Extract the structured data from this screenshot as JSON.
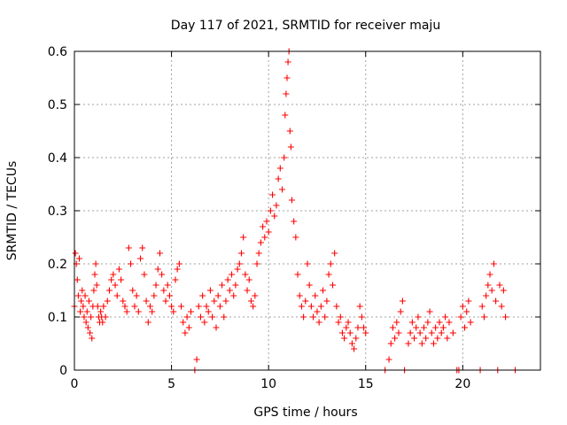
{
  "colors": {
    "series": "#ff0000",
    "axis": "#000000",
    "grid": "#a0a0a0",
    "background": "#ffffff"
  },
  "chart_data": {
    "type": "scatter",
    "title": "Day 117 of 2021, SRMTID for receiver maju",
    "xlabel": "GPS time / hours",
    "ylabel": "SRMTID / TECUs",
    "xlim": [
      0,
      24
    ],
    "ylim": [
      0,
      0.6
    ],
    "xticks": [
      0,
      5,
      10,
      15,
      20
    ],
    "xtick_labels": [
      "0",
      "5",
      "10",
      "15",
      "20"
    ],
    "yticks": [
      0,
      0.1,
      0.2,
      0.3,
      0.4,
      0.5,
      0.6
    ],
    "ytick_labels": [
      "0",
      "0.1",
      "0.2",
      "0.3",
      "0.4",
      "0.5",
      "0.6"
    ],
    "grid": true,
    "marker": "+",
    "series": [
      {
        "name": "SRMTID",
        "points": [
          [
            0.0,
            0.12
          ],
          [
            0.05,
            0.22
          ],
          [
            0.1,
            0.2
          ],
          [
            0.15,
            0.17
          ],
          [
            0.2,
            0.14
          ],
          [
            0.25,
            0.21
          ],
          [
            0.3,
            0.11
          ],
          [
            0.35,
            0.13
          ],
          [
            0.4,
            0.15
          ],
          [
            0.45,
            0.12
          ],
          [
            0.5,
            0.1
          ],
          [
            0.55,
            0.14
          ],
          [
            0.6,
            0.09
          ],
          [
            0.65,
            0.11
          ],
          [
            0.7,
            0.08
          ],
          [
            0.75,
            0.13
          ],
          [
            0.8,
            0.07
          ],
          [
            0.85,
            0.1
          ],
          [
            0.9,
            0.06
          ],
          [
            0.95,
            0.12
          ],
          [
            1.0,
            0.15
          ],
          [
            1.05,
            0.18
          ],
          [
            1.1,
            0.2
          ],
          [
            1.15,
            0.16
          ],
          [
            1.2,
            0.12
          ],
          [
            1.25,
            0.1
          ],
          [
            1.3,
            0.09
          ],
          [
            1.35,
            0.11
          ],
          [
            1.4,
            0.1
          ],
          [
            1.45,
            0.09
          ],
          [
            1.5,
            0.12
          ],
          [
            1.6,
            0.1
          ],
          [
            1.7,
            0.13
          ],
          [
            1.8,
            0.15
          ],
          [
            1.9,
            0.17
          ],
          [
            2.0,
            0.18
          ],
          [
            2.1,
            0.16
          ],
          [
            2.2,
            0.14
          ],
          [
            2.3,
            0.19
          ],
          [
            2.4,
            0.17
          ],
          [
            2.5,
            0.13
          ],
          [
            2.6,
            0.12
          ],
          [
            2.7,
            0.11
          ],
          [
            2.8,
            0.23
          ],
          [
            2.9,
            0.2
          ],
          [
            3.0,
            0.15
          ],
          [
            3.1,
            0.12
          ],
          [
            3.2,
            0.14
          ],
          [
            3.3,
            0.11
          ],
          [
            3.4,
            0.21
          ],
          [
            3.5,
            0.23
          ],
          [
            3.6,
            0.18
          ],
          [
            3.7,
            0.13
          ],
          [
            3.8,
            0.09
          ],
          [
            3.9,
            0.12
          ],
          [
            4.0,
            0.11
          ],
          [
            4.1,
            0.14
          ],
          [
            4.2,
            0.16
          ],
          [
            4.3,
            0.19
          ],
          [
            4.4,
            0.22
          ],
          [
            4.5,
            0.18
          ],
          [
            4.6,
            0.15
          ],
          [
            4.7,
            0.13
          ],
          [
            4.8,
            0.16
          ],
          [
            4.9,
            0.14
          ],
          [
            5.0,
            0.12
          ],
          [
            5.1,
            0.11
          ],
          [
            5.2,
            0.17
          ],
          [
            5.3,
            0.19
          ],
          [
            5.4,
            0.2
          ],
          [
            5.5,
            0.12
          ],
          [
            5.6,
            0.09
          ],
          [
            5.7,
            0.07
          ],
          [
            5.8,
            0.1
          ],
          [
            5.9,
            0.08
          ],
          [
            6.0,
            0.11
          ],
          [
            6.2,
            0.0
          ],
          [
            6.3,
            0.02
          ],
          [
            6.4,
            0.12
          ],
          [
            6.5,
            0.1
          ],
          [
            6.6,
            0.14
          ],
          [
            6.7,
            0.09
          ],
          [
            6.8,
            0.12
          ],
          [
            6.9,
            0.11
          ],
          [
            7.0,
            0.15
          ],
          [
            7.1,
            0.1
          ],
          [
            7.2,
            0.13
          ],
          [
            7.3,
            0.08
          ],
          [
            7.4,
            0.14
          ],
          [
            7.5,
            0.12
          ],
          [
            7.6,
            0.16
          ],
          [
            7.7,
            0.1
          ],
          [
            7.8,
            0.13
          ],
          [
            7.9,
            0.17
          ],
          [
            8.0,
            0.15
          ],
          [
            8.1,
            0.18
          ],
          [
            8.2,
            0.14
          ],
          [
            8.3,
            0.16
          ],
          [
            8.4,
            0.19
          ],
          [
            8.5,
            0.2
          ],
          [
            8.6,
            0.22
          ],
          [
            8.7,
            0.25
          ],
          [
            8.8,
            0.18
          ],
          [
            8.9,
            0.15
          ],
          [
            9.0,
            0.17
          ],
          [
            9.1,
            0.13
          ],
          [
            9.2,
            0.12
          ],
          [
            9.3,
            0.14
          ],
          [
            9.4,
            0.2
          ],
          [
            9.5,
            0.22
          ],
          [
            9.6,
            0.24
          ],
          [
            9.7,
            0.27
          ],
          [
            9.8,
            0.25
          ],
          [
            9.9,
            0.28
          ],
          [
            10.0,
            0.26
          ],
          [
            10.1,
            0.3
          ],
          [
            10.2,
            0.33
          ],
          [
            10.3,
            0.29
          ],
          [
            10.4,
            0.31
          ],
          [
            10.5,
            0.36
          ],
          [
            10.6,
            0.38
          ],
          [
            10.7,
            0.34
          ],
          [
            10.8,
            0.4
          ],
          [
            10.85,
            0.48
          ],
          [
            10.9,
            0.52
          ],
          [
            10.95,
            0.55
          ],
          [
            11.0,
            0.58
          ],
          [
            11.05,
            0.6
          ],
          [
            11.1,
            0.45
          ],
          [
            11.15,
            0.42
          ],
          [
            11.2,
            0.32
          ],
          [
            11.3,
            0.28
          ],
          [
            11.4,
            0.25
          ],
          [
            11.5,
            0.18
          ],
          [
            11.6,
            0.14
          ],
          [
            11.7,
            0.12
          ],
          [
            11.8,
            0.1
          ],
          [
            11.9,
            0.13
          ],
          [
            12.0,
            0.2
          ],
          [
            12.1,
            0.16
          ],
          [
            12.2,
            0.12
          ],
          [
            12.3,
            0.1
          ],
          [
            12.4,
            0.14
          ],
          [
            12.5,
            0.11
          ],
          [
            12.6,
            0.09
          ],
          [
            12.7,
            0.12
          ],
          [
            12.8,
            0.15
          ],
          [
            12.9,
            0.1
          ],
          [
            13.0,
            0.13
          ],
          [
            13.1,
            0.18
          ],
          [
            13.2,
            0.2
          ],
          [
            13.3,
            0.16
          ],
          [
            13.4,
            0.22
          ],
          [
            13.5,
            0.12
          ],
          [
            13.6,
            0.09
          ],
          [
            13.7,
            0.1
          ],
          [
            13.8,
            0.07
          ],
          [
            13.9,
            0.06
          ],
          [
            14.0,
            0.08
          ],
          [
            14.1,
            0.09
          ],
          [
            14.2,
            0.07
          ],
          [
            14.3,
            0.05
          ],
          [
            14.4,
            0.04
          ],
          [
            14.5,
            0.06
          ],
          [
            14.6,
            0.08
          ],
          [
            14.7,
            0.12
          ],
          [
            14.8,
            0.1
          ],
          [
            14.9,
            0.08
          ],
          [
            15.0,
            0.07
          ],
          [
            16.0,
            0.0
          ],
          [
            16.2,
            0.02
          ],
          [
            16.3,
            0.05
          ],
          [
            16.4,
            0.08
          ],
          [
            16.5,
            0.06
          ],
          [
            16.6,
            0.09
          ],
          [
            16.7,
            0.07
          ],
          [
            16.8,
            0.11
          ],
          [
            16.9,
            0.13
          ],
          [
            17.0,
            0.0
          ],
          [
            17.2,
            0.05
          ],
          [
            17.3,
            0.07
          ],
          [
            17.4,
            0.09
          ],
          [
            17.5,
            0.06
          ],
          [
            17.6,
            0.08
          ],
          [
            17.7,
            0.1
          ],
          [
            17.8,
            0.07
          ],
          [
            17.9,
            0.05
          ],
          [
            18.0,
            0.08
          ],
          [
            18.1,
            0.06
          ],
          [
            18.2,
            0.09
          ],
          [
            18.3,
            0.11
          ],
          [
            18.4,
            0.07
          ],
          [
            18.5,
            0.05
          ],
          [
            18.6,
            0.08
          ],
          [
            18.7,
            0.06
          ],
          [
            18.8,
            0.09
          ],
          [
            18.9,
            0.07
          ],
          [
            19.0,
            0.08
          ],
          [
            19.1,
            0.1
          ],
          [
            19.2,
            0.06
          ],
          [
            19.3,
            0.09
          ],
          [
            19.5,
            0.07
          ],
          [
            19.7,
            0.0
          ],
          [
            19.8,
            0.0
          ],
          [
            19.9,
            0.1
          ],
          [
            20.0,
            0.12
          ],
          [
            20.1,
            0.08
          ],
          [
            20.2,
            0.11
          ],
          [
            20.3,
            0.13
          ],
          [
            20.4,
            0.09
          ],
          [
            20.9,
            0.0
          ],
          [
            21.0,
            0.12
          ],
          [
            21.1,
            0.1
          ],
          [
            21.2,
            0.14
          ],
          [
            21.3,
            0.16
          ],
          [
            21.4,
            0.18
          ],
          [
            21.5,
            0.15
          ],
          [
            21.6,
            0.2
          ],
          [
            21.7,
            0.13
          ],
          [
            21.8,
            0.0
          ],
          [
            21.9,
            0.16
          ],
          [
            22.0,
            0.12
          ],
          [
            22.1,
            0.15
          ],
          [
            22.2,
            0.1
          ],
          [
            22.7,
            0.0
          ]
        ]
      }
    ]
  }
}
